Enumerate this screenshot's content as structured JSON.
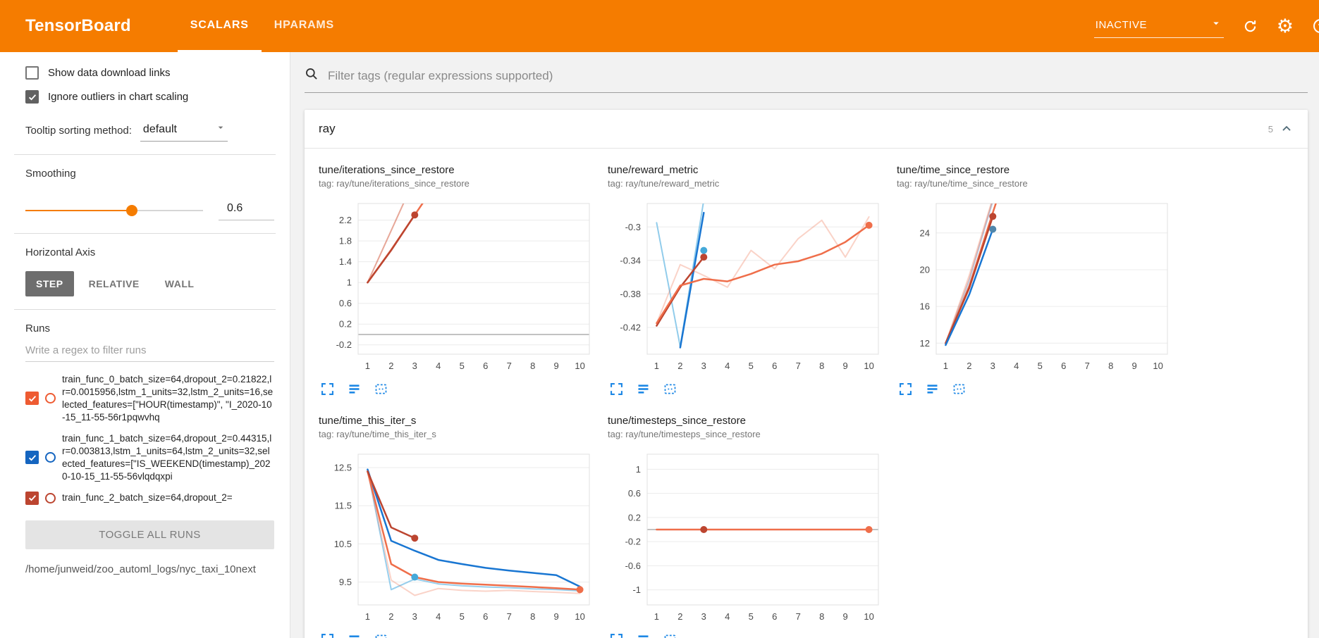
{
  "header": {
    "title": "TensorBoard",
    "tabs": [
      {
        "label": "SCALARS",
        "active": true
      },
      {
        "label": "HPARAMS",
        "active": false
      }
    ],
    "status": "INACTIVE"
  },
  "colors": {
    "accent_orange": "#f57c00",
    "chart_action_blue": "#1e88e5",
    "run_red": "#bc4530",
    "run_orange": "#ef6e4a",
    "run_blue": "#1976d2",
    "run_teal": "#45a9d9"
  },
  "sidebar": {
    "checkboxes": [
      {
        "label": "Show data download links",
        "checked": false
      },
      {
        "label": "Ignore outliers in chart scaling",
        "checked": true
      }
    ],
    "tooltip_sorting": {
      "label": "Tooltip sorting method:",
      "value": "default"
    },
    "smoothing": {
      "label": "Smoothing",
      "value": "0.6",
      "percent": 60
    },
    "horizontal_axis": {
      "label": "Horizontal Axis",
      "options": [
        {
          "label": "STEP",
          "active": true
        },
        {
          "label": "RELATIVE",
          "active": false
        },
        {
          "label": "WALL",
          "active": false
        }
      ]
    },
    "runs": {
      "label": "Runs",
      "filter_placeholder": "Write a regex to filter runs",
      "items": [
        {
          "label": "train_func_0_batch_size=64,dropout_2=0.21822,lr=0.0015956,lstm_1_units=32,lstm_2_units=16,selected_features=[\"HOUR(timestamp)\", \"I_2020-10-15_11-55-56r1pqwvhq",
          "color": "#ee5b32",
          "checked": true
        },
        {
          "label": "train_func_1_batch_size=64,dropout_2=0.44315,lr=0.003813,lstm_1_units=64,lstm_2_units=32,selected_features=[\"IS_WEEKEND(timestamp)_2020-10-15_11-55-56vlqdqxpi",
          "color": "#1565c0",
          "checked": true
        },
        {
          "label": "train_func_2_batch_size=64,dropout_2=",
          "color": "#bc4530",
          "checked": true
        }
      ],
      "toggle_all": "TOGGLE ALL RUNS",
      "log_path": "/home/junweid/zoo_automl_logs/nyc_taxi_10next"
    }
  },
  "main": {
    "filter_placeholder": "Filter tags (regular expressions supported)",
    "section": {
      "name": "ray",
      "count": "5"
    }
  },
  "chart_data": [
    {
      "type": "line",
      "title": "tune/iterations_since_restore",
      "tag": "tag: ray/tune/iterations_since_restore",
      "xticks": [
        1,
        2,
        3,
        4,
        5,
        6,
        7,
        8,
        9,
        10
      ],
      "yticks": [
        -0.2,
        0.2,
        0.6,
        1,
        1.4,
        1.8,
        2.2
      ],
      "xlim": [
        0.6,
        10.4
      ],
      "ylim": [
        -0.38,
        2.52
      ],
      "zeroline": true,
      "series": [
        {
          "name": "train_func_0 (raw)",
          "color": "#ef6e4a",
          "opacity": 0.3,
          "width": 2,
          "points": [
            [
              1,
              1
            ],
            [
              2,
              2
            ],
            [
              3,
              3
            ],
            [
              4,
              4
            ]
          ]
        },
        {
          "name": "train_func_2 (raw)",
          "color": "#bc4530",
          "opacity": 0.3,
          "width": 2,
          "points": [
            [
              1,
              1
            ],
            [
              2,
              2
            ],
            [
              3,
              3
            ]
          ]
        },
        {
          "name": "train_func_0 (smoothed)",
          "color": "#ef6e4a",
          "opacity": 1,
          "width": 2.5,
          "points": [
            [
              1,
              1
            ],
            [
              2,
              1.63
            ],
            [
              3,
              2.3
            ],
            [
              4,
              2.97
            ]
          ]
        },
        {
          "name": "train_func_2 (smoothed)",
          "color": "#bc4530",
          "opacity": 1,
          "width": 2.5,
          "points": [
            [
              1,
              1
            ],
            [
              2,
              1.62
            ],
            [
              3,
              2.3
            ]
          ]
        }
      ],
      "dots": [
        {
          "x": 3,
          "y": 2.3,
          "color": "#bc4530"
        }
      ]
    },
    {
      "type": "line",
      "title": "tune/reward_metric",
      "tag": "tag: ray/tune/reward_metric",
      "xticks": [
        1,
        2,
        3,
        4,
        5,
        6,
        7,
        8,
        9,
        10
      ],
      "yticks": [
        -0.42,
        -0.38,
        -0.34,
        -0.3
      ],
      "xlim": [
        0.6,
        10.4
      ],
      "ylim": [
        -0.452,
        -0.272
      ],
      "zeroline": false,
      "series": [
        {
          "name": "train_func_1 (raw)",
          "color": "#7ec3e8",
          "opacity": 0.85,
          "width": 2,
          "points": [
            [
              1,
              -0.295
            ],
            [
              2,
              -0.443
            ],
            [
              3,
              -0.268
            ]
          ]
        },
        {
          "name": "train_func_0 (raw)",
          "color": "#ef6e4a",
          "opacity": 0.3,
          "width": 2,
          "points": [
            [
              1,
              -0.415
            ],
            [
              2,
              -0.345
            ],
            [
              3,
              -0.358
            ],
            [
              4,
              -0.372
            ],
            [
              5,
              -0.328
            ],
            [
              6,
              -0.35
            ],
            [
              7,
              -0.314
            ],
            [
              8,
              -0.292
            ],
            [
              9,
              -0.336
            ],
            [
              10,
              -0.288
            ]
          ]
        },
        {
          "name": "train_func_1 (smoothed)",
          "color": "#1976d2",
          "opacity": 1,
          "width": 2.5,
          "points": [
            [
              2,
              -0.444
            ],
            [
              3,
              -0.283
            ]
          ]
        },
        {
          "name": "train_func_2 (smoothed)",
          "color": "#bc4530",
          "opacity": 1,
          "width": 2.5,
          "points": [
            [
              1,
              -0.418
            ],
            [
              2,
              -0.372
            ],
            [
              3,
              -0.336
            ]
          ]
        },
        {
          "name": "train_func_0 (smoothed)",
          "color": "#ef6e4a",
          "opacity": 1,
          "width": 2.5,
          "points": [
            [
              1,
              -0.415
            ],
            [
              2,
              -0.37
            ],
            [
              3,
              -0.362
            ],
            [
              4,
              -0.365
            ],
            [
              5,
              -0.356
            ],
            [
              6,
              -0.345
            ],
            [
              7,
              -0.341
            ],
            [
              8,
              -0.332
            ],
            [
              9,
              -0.318
            ],
            [
              10,
              -0.298
            ]
          ]
        }
      ],
      "dots": [
        {
          "x": 3,
          "y": -0.336,
          "color": "#bc4530"
        },
        {
          "x": 3,
          "y": -0.328,
          "color": "#45a9d9"
        },
        {
          "x": 10,
          "y": -0.298,
          "color": "#ef6e4a"
        }
      ]
    },
    {
      "type": "line",
      "title": "tune/time_since_restore",
      "tag": "tag: ray/tune/time_since_restore",
      "xticks": [
        1,
        2,
        3,
        4,
        5,
        6,
        7,
        8,
        9,
        10
      ],
      "yticks": [
        12,
        16,
        20,
        24
      ],
      "xlim": [
        0.6,
        10.4
      ],
      "ylim": [
        10.8,
        27.2
      ],
      "zeroline": false,
      "series": [
        {
          "name": "train_func_0 (raw)",
          "color": "#ef6e4a",
          "opacity": 0.3,
          "width": 2,
          "points": [
            [
              1,
              12
            ],
            [
              2,
              19.4
            ],
            [
              3,
              27.8
            ]
          ]
        },
        {
          "name": "train_func_1 (raw)",
          "color": "#1976d2",
          "opacity": 0.25,
          "width": 2,
          "points": [
            [
              1,
              11.8
            ],
            [
              2,
              18.8
            ],
            [
              3,
              27.4
            ]
          ]
        },
        {
          "name": "train_func_2 (raw)",
          "color": "#bc4530",
          "opacity": 0.25,
          "width": 2,
          "points": [
            [
              1,
              12
            ],
            [
              2,
              19
            ],
            [
              3,
              27.6
            ]
          ]
        },
        {
          "name": "train_func_0 (smoothed)",
          "color": "#ef6e4a",
          "opacity": 1,
          "width": 2.5,
          "points": [
            [
              1,
              12
            ],
            [
              2,
              18.2
            ],
            [
              3,
              26.2
            ],
            [
              4,
              34
            ]
          ]
        },
        {
          "name": "train_func_2 (smoothed)",
          "color": "#bc4530",
          "opacity": 1,
          "width": 2.5,
          "points": [
            [
              1,
              12
            ],
            [
              2,
              18
            ],
            [
              3,
              25.8
            ]
          ]
        },
        {
          "name": "train_func_1 (smoothed)",
          "color": "#1976d2",
          "opacity": 1,
          "width": 2.5,
          "points": [
            [
              1,
              11.8
            ],
            [
              2,
              17.3
            ],
            [
              3,
              24.4
            ]
          ]
        }
      ],
      "dots": [
        {
          "x": 3,
          "y": 25.8,
          "color": "#bc4530"
        },
        {
          "x": 3,
          "y": 24.4,
          "color": "#4f86ab"
        }
      ]
    },
    {
      "type": "line",
      "title": "tune/time_this_iter_s",
      "tag": "tag: ray/tune/time_this_iter_s",
      "xticks": [
        1,
        2,
        3,
        4,
        5,
        6,
        7,
        8,
        9,
        10
      ],
      "yticks": [
        9.5,
        10.5,
        11.5,
        12.5
      ],
      "xlim": [
        0.6,
        10.4
      ],
      "ylim": [
        8.9,
        12.85
      ],
      "zeroline": false,
      "series": [
        {
          "name": "train_func_1 (raw)",
          "color": "#7ec3e8",
          "opacity": 0.8,
          "width": 2,
          "points": [
            [
              1,
              12.45
            ],
            [
              2,
              9.3
            ],
            [
              3,
              9.58
            ],
            [
              4,
              9.45
            ],
            [
              5,
              9.4
            ],
            [
              6,
              9.37
            ],
            [
              7,
              9.35
            ],
            [
              8,
              9.32
            ],
            [
              9,
              9.3
            ],
            [
              10,
              9.27
            ]
          ]
        },
        {
          "name": "train_func_0 (raw)",
          "color": "#ef6e4a",
          "opacity": 0.3,
          "width": 2,
          "points": [
            [
              1,
              12.4
            ],
            [
              2,
              9.55
            ],
            [
              3,
              9.15
            ],
            [
              4,
              9.33
            ],
            [
              5,
              9.28
            ],
            [
              6,
              9.26
            ],
            [
              7,
              9.28
            ],
            [
              8,
              9.25
            ],
            [
              9,
              9.23
            ],
            [
              10,
              9.2
            ]
          ]
        },
        {
          "name": "train_func_1 (smoothed)",
          "color": "#1976d2",
          "opacity": 1,
          "width": 2.5,
          "points": [
            [
              1,
              12.45
            ],
            [
              2,
              10.58
            ],
            [
              3,
              10.32
            ],
            [
              4,
              10.08
            ],
            [
              5,
              9.97
            ],
            [
              6,
              9.87
            ],
            [
              7,
              9.8
            ],
            [
              8,
              9.74
            ],
            [
              9,
              9.68
            ],
            [
              10,
              9.38
            ]
          ]
        },
        {
          "name": "train_func_0 (smoothed)",
          "color": "#ef6e4a",
          "opacity": 1,
          "width": 2.5,
          "points": [
            [
              1,
              12.4
            ],
            [
              2,
              9.97
            ],
            [
              3,
              9.63
            ],
            [
              4,
              9.5
            ],
            [
              5,
              9.46
            ],
            [
              6,
              9.43
            ],
            [
              7,
              9.4
            ],
            [
              8,
              9.37
            ],
            [
              9,
              9.34
            ],
            [
              10,
              9.3
            ]
          ]
        },
        {
          "name": "train_func_2 (smoothed)",
          "color": "#bc4530",
          "opacity": 1,
          "width": 2.5,
          "points": [
            [
              1,
              12.4
            ],
            [
              2,
              10.93
            ],
            [
              3,
              10.65
            ]
          ]
        }
      ],
      "dots": [
        {
          "x": 3,
          "y": 10.65,
          "color": "#bc4530"
        },
        {
          "x": 3,
          "y": 9.63,
          "color": "#45a9d9"
        },
        {
          "x": 10,
          "y": 9.3,
          "color": "#ef6e4a"
        }
      ]
    },
    {
      "type": "line",
      "title": "tune/timesteps_since_restore",
      "tag": "tag: ray/tune/timesteps_since_restore",
      "xticks": [
        1,
        2,
        3,
        4,
        5,
        6,
        7,
        8,
        9,
        10
      ],
      "yticks": [
        -1,
        -0.6,
        -0.2,
        0.2,
        0.6,
        1
      ],
      "xlim": [
        0.6,
        10.4
      ],
      "ylim": [
        -1.25,
        1.25
      ],
      "zeroline": true,
      "series": [
        {
          "name": "train_func_0 (smoothed)",
          "color": "#ef6e4a",
          "opacity": 1,
          "width": 2.5,
          "points": [
            [
              1,
              0
            ],
            [
              10,
              0
            ]
          ]
        }
      ],
      "dots": [
        {
          "x": 3,
          "y": 0,
          "color": "#bc4530"
        },
        {
          "x": 10,
          "y": 0,
          "color": "#ef6e4a"
        }
      ]
    }
  ]
}
